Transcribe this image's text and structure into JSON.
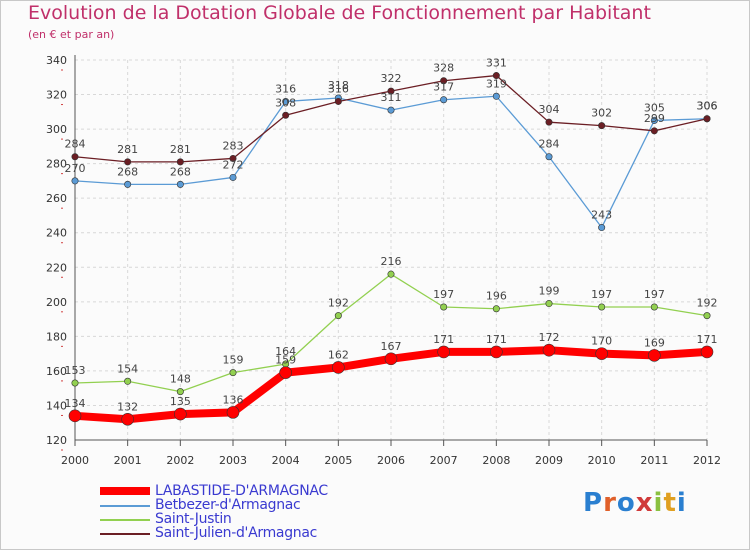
{
  "title": "Evolution de la Dotation Globale de Fonctionnement par Habitant",
  "subtitle": "(en € et par an)",
  "logo": {
    "text": "Proxiti",
    "colors": [
      "#2a7fd0",
      "#e0602a",
      "#2a7fd0",
      "#d03a3a",
      "#8ac040",
      "#e0a020",
      "#2a7fd0"
    ]
  },
  "chart_data": {
    "type": "line",
    "title": "Evolution de la Dotation Globale de Fonctionnement par Habitant",
    "subtitle": "(en € et par an)",
    "xlabel": "",
    "ylabel": "",
    "ylim": [
      120,
      340
    ],
    "yticks": [
      120,
      140,
      160,
      180,
      200,
      220,
      240,
      260,
      280,
      300,
      320,
      340
    ],
    "categories": [
      "2000",
      "2001",
      "2002",
      "2003",
      "2004",
      "2005",
      "2006",
      "2007",
      "2008",
      "2009",
      "2010",
      "2011",
      "2012"
    ],
    "grid": true,
    "series": [
      {
        "name": "LABASTIDE-D'ARMAGNAC",
        "color": "#ff0000",
        "width": 8,
        "values": [
          134,
          132,
          135,
          136,
          159,
          162,
          167,
          171,
          171,
          172,
          170,
          169,
          171
        ]
      },
      {
        "name": "Betbezer-d'Armagnac",
        "color": "#5b9bd5",
        "width": 1.3,
        "values": [
          270,
          268,
          268,
          272,
          316,
          318,
          311,
          317,
          319,
          284,
          243,
          305,
          306
        ]
      },
      {
        "name": "Saint-Justin",
        "color": "#92d050",
        "width": 1.3,
        "values": [
          153,
          154,
          148,
          159,
          164,
          192,
          216,
          197,
          196,
          199,
          197,
          197,
          192
        ]
      },
      {
        "name": "Saint-Julien-d'Armagnac",
        "color": "#6b1e24",
        "width": 1.3,
        "values": [
          284,
          281,
          281,
          283,
          308,
          316,
          322,
          328,
          331,
          304,
          302,
          299,
          306
        ]
      }
    ]
  }
}
